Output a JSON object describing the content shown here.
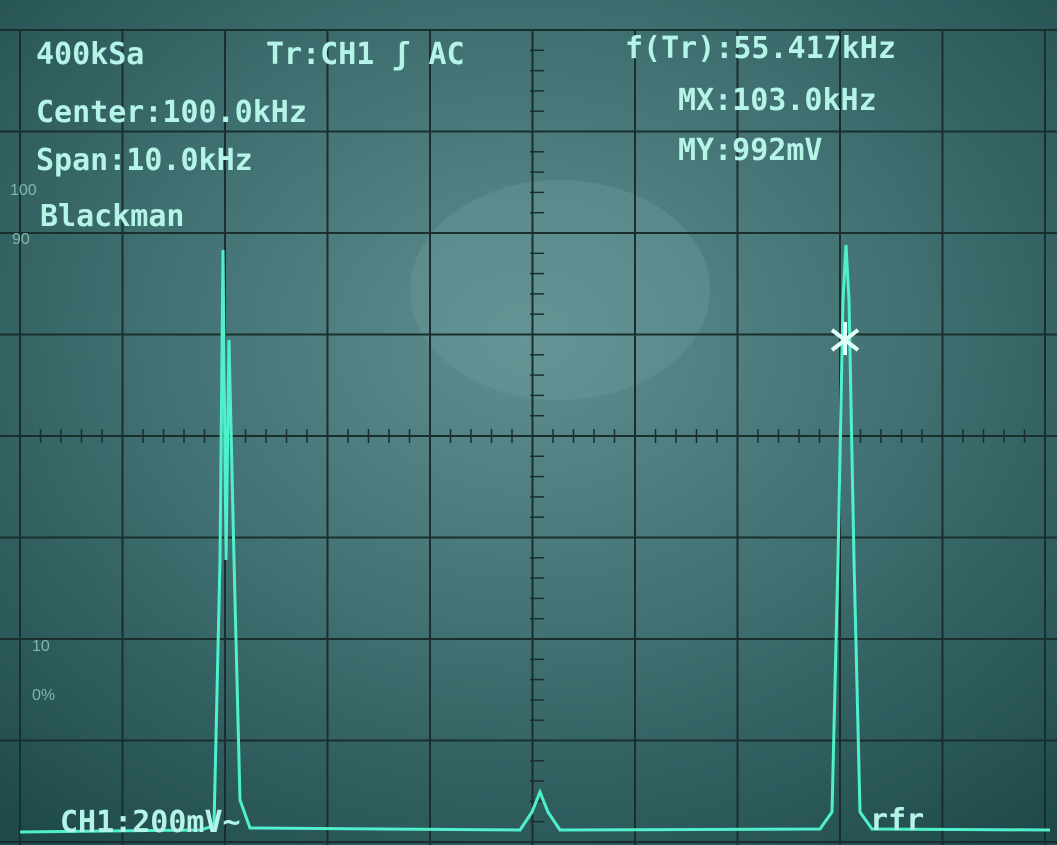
{
  "readouts": {
    "sample_rate": "400kSa",
    "trigger": "Tr:CH1 ʃ AC",
    "trigger_frequency": "f(Tr):55.417kHz",
    "center": "Center:100.0kHz",
    "marker_x": "MX:103.0kHz",
    "span": "Span:10.0kHz",
    "marker_y": "MY:992mV",
    "window": "Blackman"
  },
  "scale_labels": [
    "100",
    "90",
    "10",
    "0%"
  ],
  "channel": "CH1:200mV~",
  "corner_text": "rfr"
}
